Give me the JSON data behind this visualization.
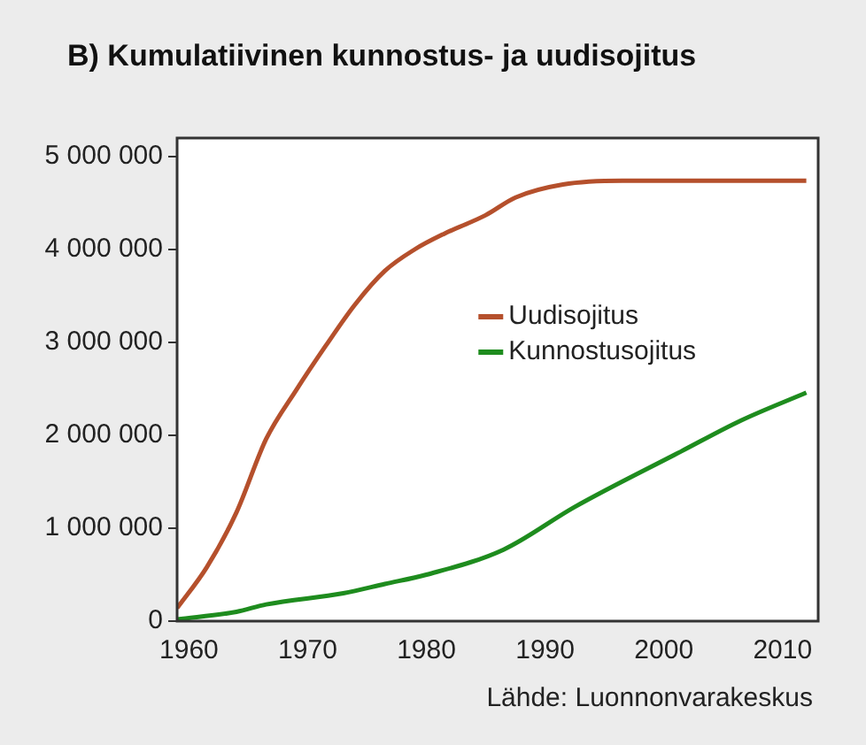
{
  "chart_data": {
    "type": "line",
    "title": "B) Kumulatiivinen kunnostus- ja uudisojitus",
    "annotations": [
      "Lähde: Luonnonvarakeskus"
    ],
    "xlim": [
      1959,
      2013
    ],
    "xticks": [
      1960,
      1970,
      1980,
      1990,
      2000,
      2010
    ],
    "ylim": [
      0,
      5200000
    ],
    "yticks": [
      {
        "value": 0,
        "label": "0"
      },
      {
        "value": 1000000,
        "label": "1 000 000"
      },
      {
        "value": 2000000,
        "label": "2 000 000"
      },
      {
        "value": 3000000,
        "label": "3 000 000"
      },
      {
        "value": 4000000,
        "label": "4 000 000"
      },
      {
        "value": 5000000,
        "label": "5 000 000"
      }
    ],
    "grid": false,
    "legend": "right",
    "marker": "none",
    "line_style": "solid",
    "series": [
      {
        "name": "Uudisojitus",
        "color": "#b5502c",
        "x": [
          1959,
          1961.5,
          1964,
          1966.5,
          1969,
          1971.5,
          1974,
          1976.5,
          1979,
          1981.5,
          1985,
          1987.5,
          1991.5,
          1996.5,
          2012
        ],
        "values": [
          140000,
          580000,
          1170000,
          1960000,
          2480000,
          2960000,
          3410000,
          3770000,
          4000000,
          4170000,
          4370000,
          4560000,
          4700000,
          4740000,
          4740000
        ]
      },
      {
        "name": "Kunnostusojitus",
        "color": "#1e8c1e",
        "x": [
          1959,
          1964,
          1966.5,
          1973,
          1976.5,
          1980,
          1986.5,
          1992.5,
          2001.5,
          2006.5,
          2012
        ],
        "values": [
          20000,
          100000,
          180000,
          300000,
          400000,
          500000,
          770000,
          1230000,
          1830000,
          2160000,
          2460000
        ]
      }
    ]
  }
}
